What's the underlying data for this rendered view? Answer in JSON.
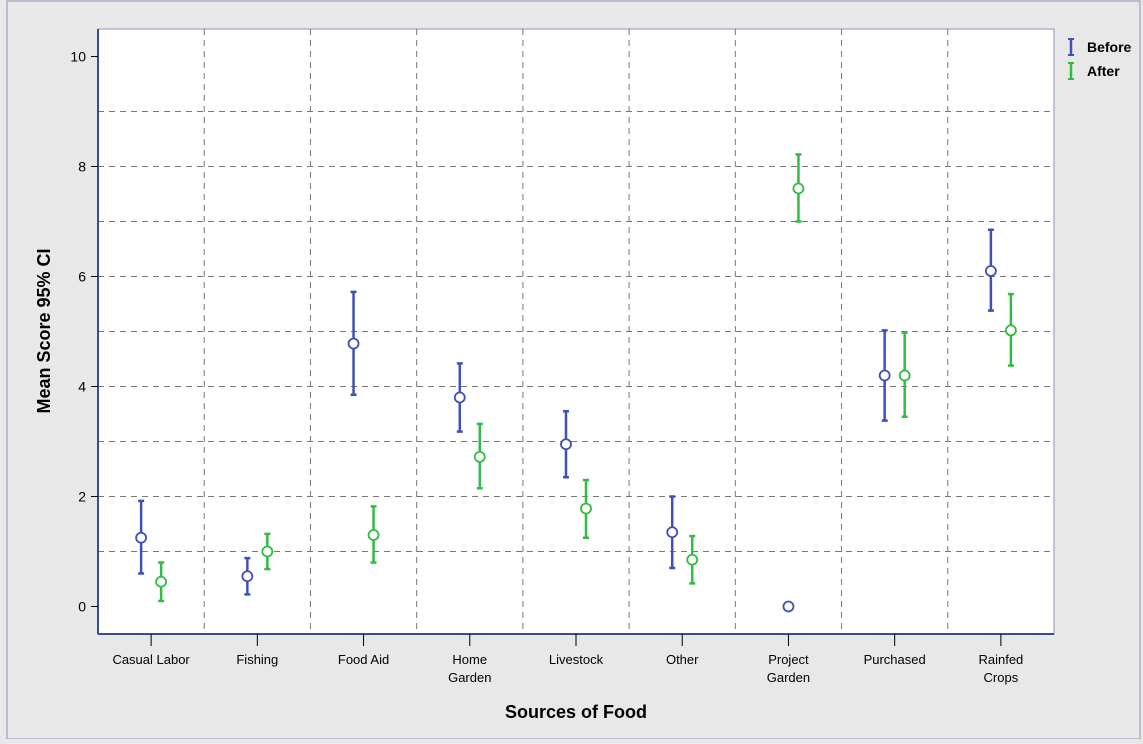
{
  "chart_data": {
    "type": "scatter",
    "title": "",
    "xlabel": "Sources of Food",
    "ylabel": "Mean Score 95% CI",
    "ylim": [
      -0.5,
      10.5
    ],
    "yticks": [
      0,
      2,
      4,
      6,
      8,
      10
    ],
    "grid": true,
    "legend_position": "top-right",
    "categories": [
      [
        "Casual Labor"
      ],
      [
        "Fishing"
      ],
      [
        "Food Aid"
      ],
      [
        "Home",
        "Garden"
      ],
      [
        "Livestock"
      ],
      [
        "Other"
      ],
      [
        "Project",
        "Garden"
      ],
      [
        "Purchased"
      ],
      [
        "Rainfed",
        "Crops"
      ]
    ],
    "series": [
      {
        "name": "Before",
        "color": "#3f51b5",
        "mean": [
          1.25,
          0.55,
          4.78,
          3.8,
          2.95,
          1.35,
          0.0,
          4.2,
          6.1
        ],
        "lower": [
          0.6,
          0.22,
          3.85,
          3.18,
          2.35,
          0.7,
          null,
          3.38,
          5.38
        ],
        "upper": [
          1.92,
          0.88,
          5.72,
          4.42,
          3.55,
          2.0,
          null,
          5.02,
          6.85
        ]
      },
      {
        "name": "After",
        "color": "#33bb44",
        "mean": [
          0.45,
          1.0,
          1.3,
          2.72,
          1.78,
          0.85,
          7.6,
          4.2,
          5.02
        ],
        "lower": [
          0.1,
          0.68,
          0.8,
          2.15,
          1.25,
          0.42,
          7.0,
          3.45,
          4.38
        ],
        "upper": [
          0.8,
          1.32,
          1.82,
          3.32,
          2.3,
          1.28,
          8.22,
          4.98,
          5.68
        ]
      }
    ]
  }
}
